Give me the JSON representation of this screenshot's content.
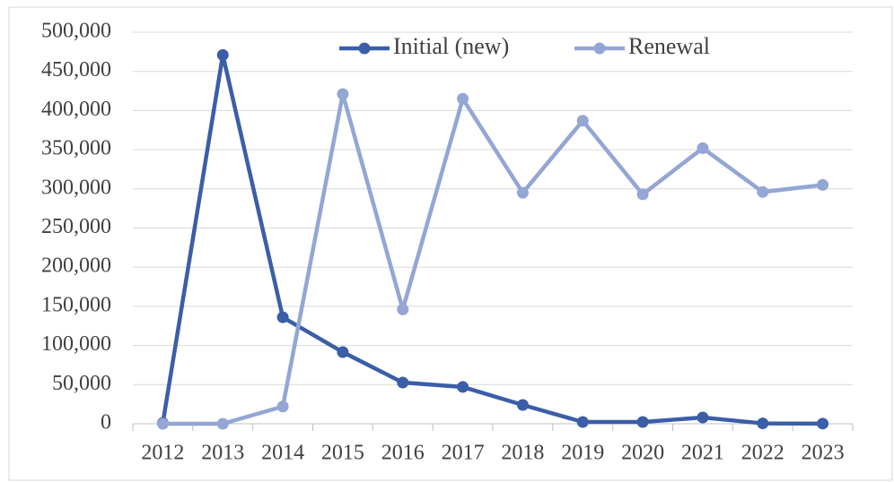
{
  "chart_data": {
    "type": "line",
    "categories": [
      "2012",
      "2013",
      "2014",
      "2015",
      "2016",
      "2017",
      "2018",
      "2019",
      "2020",
      "2021",
      "2022",
      "2023"
    ],
    "series": [
      {
        "name": "Initial (new)",
        "color": "#3b5ea8",
        "values": [
          1000,
          471000,
          136000,
          91500,
          52600,
          47000,
          24000,
          2300,
          2300,
          8000,
          500,
          200
        ]
      },
      {
        "name": "Renewal",
        "color": "#93a6d4",
        "values": [
          0,
          0,
          22000,
          421000,
          146000,
          415000,
          295000,
          387000,
          293000,
          352000,
          296000,
          305000
        ]
      }
    ],
    "ylim": [
      0,
      500000
    ],
    "yticks": [
      0,
      {
        "value": 50000,
        "label": "50,000"
      },
      {
        "value": 100000,
        "label": "100,000"
      },
      {
        "value": 150000,
        "label": "150,000"
      },
      {
        "value": 200000,
        "label": "200,000"
      },
      {
        "value": 250000,
        "label": "250,000"
      },
      {
        "value": 300000,
        "label": "300,000"
      },
      {
        "value": 350000,
        "label": "350,000"
      },
      {
        "value": 400000,
        "label": "400,000"
      },
      {
        "value": 450000,
        "label": "450,000"
      },
      {
        "value": 500000,
        "label": "500,000"
      }
    ],
    "grid": true,
    "legend": "top"
  }
}
